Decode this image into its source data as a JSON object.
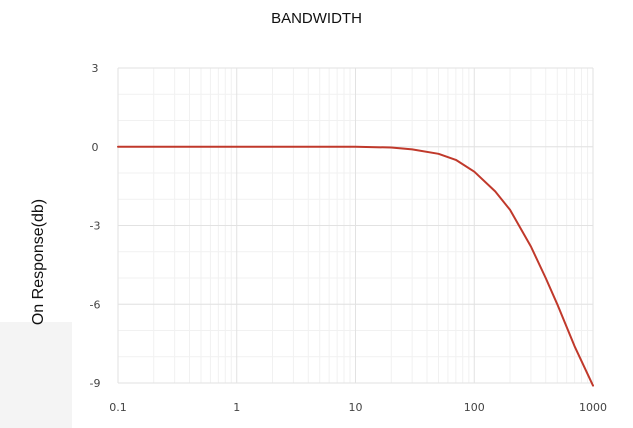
{
  "chart_data": {
    "type": "line",
    "title": "BANDWIDTH",
    "xlabel": "",
    "ylabel": "On Response(db)",
    "xscale": "log",
    "xlim": [
      0.1,
      1000
    ],
    "ylim": [
      -9,
      3
    ],
    "xticks": [
      "0.1",
      "1",
      "10",
      "100",
      "1000"
    ],
    "yticks": [
      "3",
      "0",
      "-3",
      "-6",
      "-9"
    ],
    "grid": true,
    "line_color": "#c0392b",
    "series": [
      {
        "x": [
          0.1,
          0.3,
          1,
          3,
          10,
          20,
          30,
          50,
          70,
          100,
          150,
          200,
          300,
          400,
          500,
          700,
          1000
        ],
        "values": [
          0,
          0,
          0,
          0,
          0,
          -0.03,
          -0.1,
          -0.27,
          -0.5,
          -0.95,
          -1.7,
          -2.4,
          -3.8,
          -5.0,
          -6.0,
          -7.6,
          -9.1
        ]
      }
    ]
  }
}
